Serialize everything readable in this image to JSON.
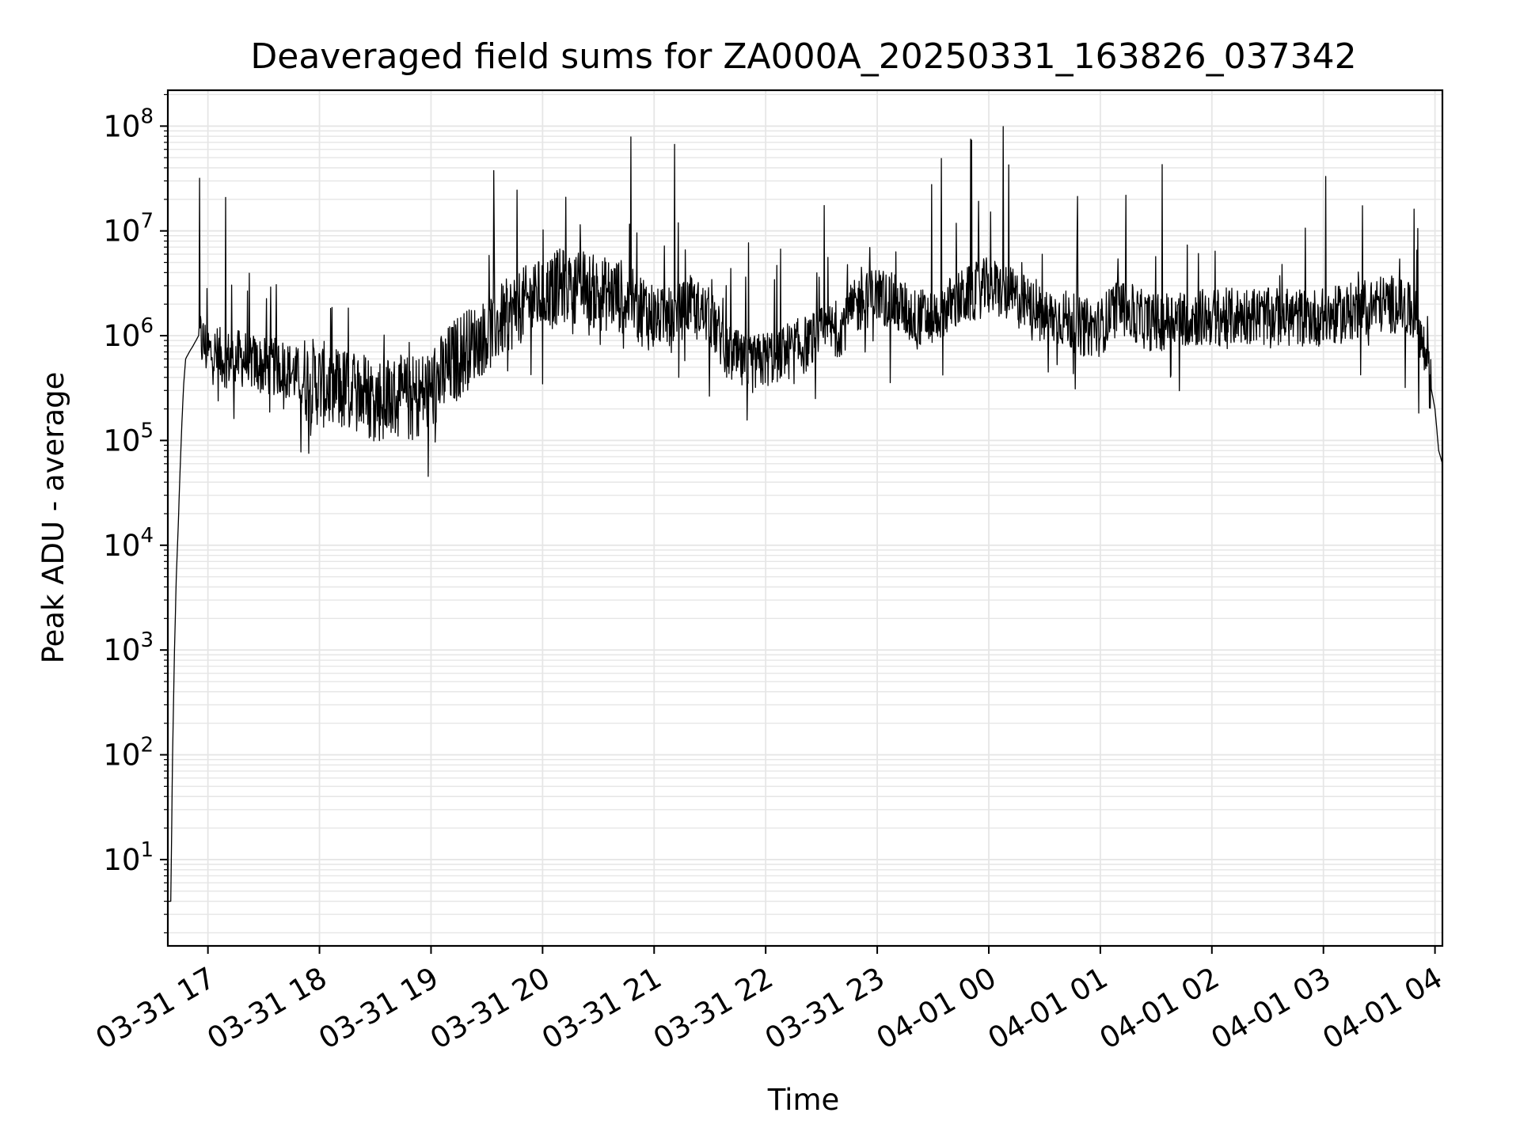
{
  "chart_data": {
    "type": "line",
    "title": "Deaveraged field sums for ZA000A_20250331_163826_037342",
    "xlabel": "Time",
    "ylabel": "Peak ADU - average",
    "y_scale": "log",
    "ylim": [
      1.5,
      220000000
    ],
    "xlim": [
      "2025-03-31 16:38:26",
      "2025-04-01 04:04:00"
    ],
    "x_ticks": [
      {
        "value": "2025-03-31 17:00",
        "label": "03-31 17"
      },
      {
        "value": "2025-03-31 18:00",
        "label": "03-31 18"
      },
      {
        "value": "2025-03-31 19:00",
        "label": "03-31 19"
      },
      {
        "value": "2025-03-31 20:00",
        "label": "03-31 20"
      },
      {
        "value": "2025-03-31 21:00",
        "label": "03-31 21"
      },
      {
        "value": "2025-03-31 22:00",
        "label": "03-31 22"
      },
      {
        "value": "2025-03-31 23:00",
        "label": "03-31 23"
      },
      {
        "value": "2025-04-01 00:00",
        "label": "04-01 00"
      },
      {
        "value": "2025-04-01 01:00",
        "label": "04-01 01"
      },
      {
        "value": "2025-04-01 02:00",
        "label": "04-01 02"
      },
      {
        "value": "2025-04-01 03:00",
        "label": "04-01 03"
      },
      {
        "value": "2025-04-01 04:00",
        "label": "04-01 04"
      }
    ],
    "y_ticks": [
      {
        "value": 10,
        "base": "10",
        "exp": "1"
      },
      {
        "value": 100,
        "base": "10",
        "exp": "2"
      },
      {
        "value": 1000,
        "base": "10",
        "exp": "3"
      },
      {
        "value": 10000,
        "base": "10",
        "exp": "4"
      },
      {
        "value": 100000,
        "base": "10",
        "exp": "5"
      },
      {
        "value": 1000000,
        "base": "10",
        "exp": "6"
      },
      {
        "value": 10000000,
        "base": "10",
        "exp": "7"
      },
      {
        "value": 100000000,
        "base": "10",
        "exp": "8"
      }
    ],
    "grid": true,
    "legend": "none",
    "line_color": "#000000",
    "grid_color": "#e6e6e6",
    "series": [
      {
        "x": [
          "2025-03-31 16:38",
          "2025-03-31 16:40",
          "2025-03-31 16:41",
          "2025-03-31 16:42",
          "2025-03-31 16:43",
          "2025-03-31 16:44",
          "2025-03-31 16:45",
          "2025-03-31 16:46",
          "2025-03-31 16:47",
          "2025-03-31 16:48",
          "2025-03-31 16:50",
          "2025-03-31 16:52",
          "2025-03-31 16:55",
          "2025-03-31 17:00",
          "2025-03-31 17:10",
          "2025-03-31 17:20",
          "2025-03-31 17:30",
          "2025-03-31 17:40",
          "2025-03-31 17:50",
          "2025-03-31 18:00",
          "2025-03-31 18:10",
          "2025-03-31 18:20",
          "2025-03-31 18:30",
          "2025-03-31 18:40",
          "2025-03-31 18:50",
          "2025-03-31 19:00",
          "2025-03-31 19:10",
          "2025-03-31 19:20",
          "2025-03-31 19:30",
          "2025-03-31 19:40",
          "2025-03-31 19:50",
          "2025-03-31 20:00",
          "2025-03-31 20:10",
          "2025-03-31 20:20",
          "2025-03-31 20:30",
          "2025-03-31 20:40",
          "2025-03-31 20:50",
          "2025-03-31 21:00",
          "2025-03-31 21:10",
          "2025-03-31 21:20",
          "2025-03-31 21:30",
          "2025-03-31 21:40",
          "2025-03-31 21:50",
          "2025-03-31 22:00",
          "2025-03-31 22:10",
          "2025-03-31 22:20",
          "2025-03-31 22:30",
          "2025-03-31 22:40",
          "2025-03-31 22:50",
          "2025-03-31 23:00",
          "2025-03-31 23:10",
          "2025-03-31 23:20",
          "2025-03-31 23:30",
          "2025-03-31 23:40",
          "2025-03-31 23:50",
          "2025-04-01 00:00",
          "2025-04-01 00:10",
          "2025-04-01 00:20",
          "2025-04-01 00:30",
          "2025-04-01 00:40",
          "2025-04-01 00:50",
          "2025-04-01 01:00",
          "2025-04-01 01:10",
          "2025-04-01 01:20",
          "2025-04-01 01:30",
          "2025-04-01 01:40",
          "2025-04-01 01:50",
          "2025-04-01 02:00",
          "2025-04-01 02:10",
          "2025-04-01 02:20",
          "2025-04-01 02:30",
          "2025-04-01 02:40",
          "2025-04-01 02:50",
          "2025-04-01 03:00",
          "2025-04-01 03:10",
          "2025-04-01 03:20",
          "2025-04-01 03:30",
          "2025-04-01 03:40",
          "2025-04-01 03:50",
          "2025-04-01 03:55",
          "2025-04-01 04:00",
          "2025-04-01 04:02",
          "2025-04-01 04:04"
        ],
        "y": [
          4,
          4,
          100,
          1000,
          5000,
          15000,
          50000,
          150000,
          350000,
          600000,
          700000,
          800000,
          1000000,
          700000,
          600000,
          600000,
          500000,
          500000,
          400000,
          350000,
          300000,
          300000,
          250000,
          250000,
          250000,
          300000,
          500000,
          800000,
          1000000,
          1500000,
          2000000,
          2500000,
          3000000,
          3000000,
          2500000,
          2500000,
          2000000,
          1500000,
          1500000,
          2000000,
          1500000,
          700000,
          500000,
          600000,
          700000,
          800000,
          1000000,
          1200000,
          2000000,
          2500000,
          2000000,
          1500000,
          1500000,
          2000000,
          2500000,
          3000000,
          2500000,
          2000000,
          1500000,
          1500000,
          1200000,
          1200000,
          2000000,
          1500000,
          1300000,
          1500000,
          1500000,
          1500000,
          1500000,
          1600000,
          1500000,
          1500000,
          1500000,
          1500000,
          1600000,
          1800000,
          2000000,
          2000000,
          1500000,
          600000,
          200000,
          80000,
          60000
        ]
      }
    ]
  }
}
